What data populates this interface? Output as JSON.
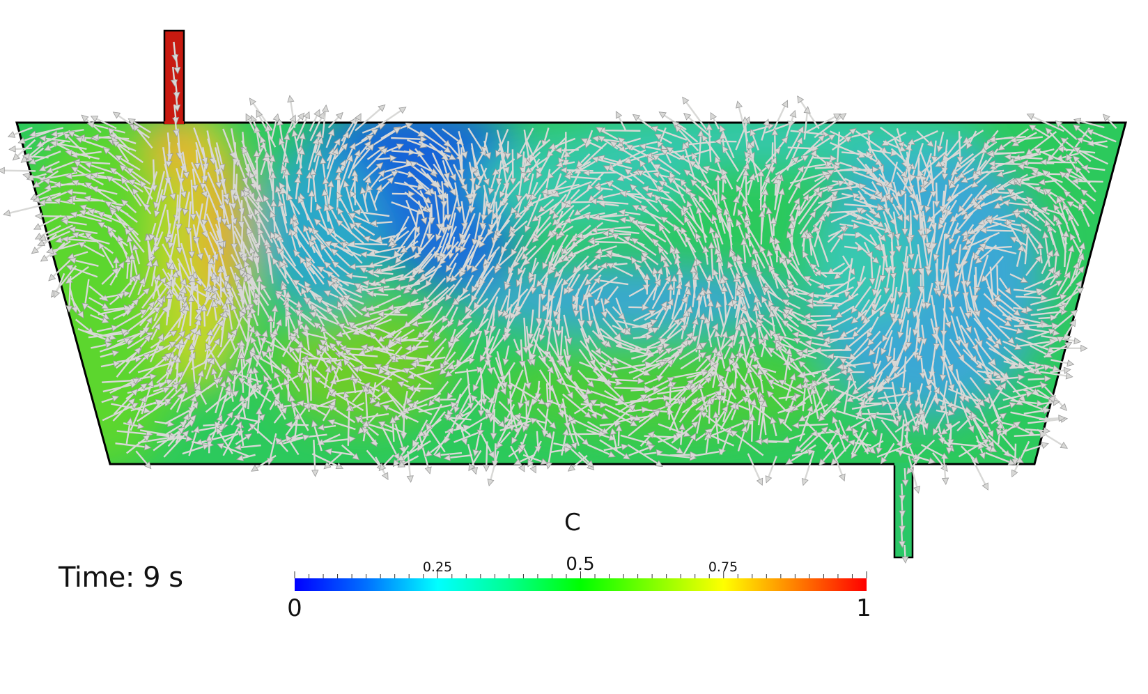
{
  "time_label": "Time: 9 s",
  "colorbar": {
    "title": "C",
    "min_label": "0",
    "max_label": "1",
    "tick_025": "0.25",
    "tick_05": "0.5",
    "tick_075": "0.75",
    "colors": [
      "#0000ff",
      "#00a8ff",
      "#00ffff",
      "#00ff80",
      "#00ff00",
      "#80ff00",
      "#ffff00",
      "#ff8000",
      "#ff0000"
    ]
  },
  "field": {
    "arrow_color": "#d8d8d6",
    "arrow_edge_color": "#9a9a9a",
    "outline_color": "#000000"
  }
}
